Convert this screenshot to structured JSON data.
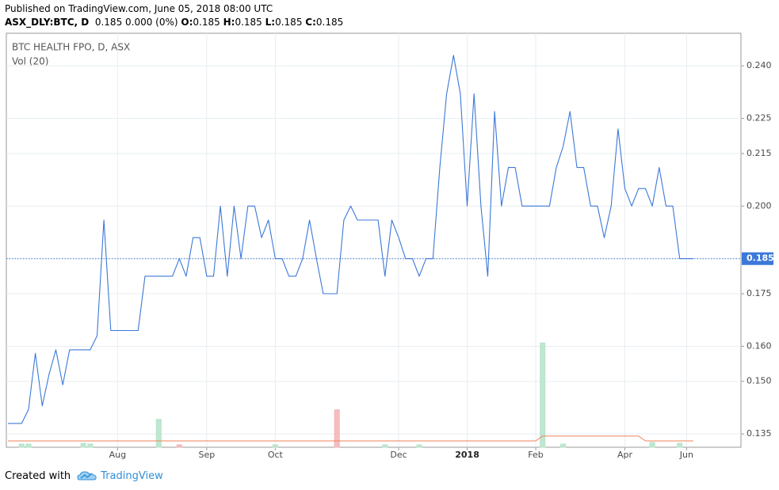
{
  "header": {
    "published": "Published on TradingView.com, June 05, 2018 08:00 UTC",
    "symbol": "ASX_DLY:BTC, D",
    "change": "0.185 0.000 (0%)",
    "ohlc": [
      {
        "key": "O:",
        "value": "0.185"
      },
      {
        "key": "H:",
        "value": "0.185"
      },
      {
        "key": "L:",
        "value": "0.185"
      },
      {
        "key": "C:",
        "value": "0.185"
      }
    ]
  },
  "chart_data": {
    "type": "line",
    "categories": [
      null,
      null,
      null,
      null,
      null,
      null,
      null,
      null,
      null,
      null,
      null,
      null,
      null,
      null,
      null,
      null,
      "Aug",
      null,
      null,
      null,
      null,
      null,
      null,
      null,
      null,
      null,
      null,
      null,
      null,
      "Sep",
      null,
      null,
      null,
      null,
      null,
      null,
      null,
      null,
      null,
      "Oct",
      null,
      null,
      null,
      null,
      null,
      null,
      null,
      null,
      null,
      null,
      null,
      null,
      null,
      null,
      null,
      null,
      null,
      "Dec",
      null,
      null,
      null,
      null,
      null,
      null,
      null,
      null,
      null,
      "2018",
      null,
      null,
      null,
      null,
      null,
      null,
      null,
      null,
      null,
      "Feb",
      null,
      null,
      null,
      null,
      null,
      null,
      null,
      null,
      null,
      null,
      null,
      null,
      "Apr",
      null,
      null,
      null,
      null,
      null,
      null,
      null,
      null,
      "Jun",
      null
    ],
    "series": [
      {
        "name": "BTC HEALTH FPO, D, ASX",
        "color": "#3c78d8",
        "values": [
          0.138,
          0.138,
          0.138,
          0.142,
          0.158,
          0.143,
          0.152,
          0.159,
          0.149,
          0.159,
          0.159,
          0.159,
          0.159,
          0.163,
          0.196,
          0.1645,
          0.1645,
          0.1645,
          0.1645,
          0.1645,
          0.18,
          0.18,
          0.18,
          0.18,
          0.18,
          0.185,
          0.18,
          0.191,
          0.191,
          0.18,
          0.18,
          0.2,
          0.18,
          0.2,
          0.185,
          0.2,
          0.2,
          0.191,
          0.196,
          0.185,
          0.185,
          0.18,
          0.18,
          0.185,
          0.196,
          0.185,
          0.175,
          0.175,
          0.175,
          0.196,
          0.2,
          0.196,
          0.196,
          0.196,
          0.196,
          0.18,
          0.196,
          0.191,
          0.185,
          0.185,
          0.18,
          0.185,
          0.185,
          0.211,
          0.232,
          0.243,
          0.232,
          0.2,
          0.232,
          0.2,
          0.18,
          0.227,
          0.2,
          0.211,
          0.211,
          0.2,
          0.2,
          0.2,
          0.2,
          0.2,
          0.211,
          0.217,
          0.227,
          0.211,
          0.211,
          0.2,
          0.2,
          0.191,
          0.2,
          0.222,
          0.205,
          0.2,
          0.205,
          0.205,
          0.2,
          0.211,
          0.2,
          0.2,
          0.185,
          0.185,
          0.185
        ]
      }
    ],
    "volume": {
      "name": "Vol (20)",
      "vlim": [
        0,
        520
      ],
      "ma_color": "#f0805a",
      "values": [
        null,
        null,
        4,
        4,
        null,
        null,
        null,
        null,
        null,
        null,
        null,
        5,
        4,
        null,
        null,
        null,
        null,
        null,
        null,
        null,
        null,
        null,
        35,
        null,
        null,
        3,
        null,
        null,
        null,
        null,
        null,
        null,
        null,
        null,
        null,
        null,
        null,
        null,
        null,
        3,
        null,
        null,
        null,
        null,
        null,
        null,
        null,
        null,
        47,
        null,
        null,
        null,
        null,
        null,
        null,
        3,
        null,
        null,
        null,
        null,
        3,
        null,
        null,
        null,
        null,
        null,
        null,
        null,
        null,
        null,
        null,
        null,
        null,
        null,
        null,
        null,
        null,
        null,
        131,
        null,
        null,
        4,
        null,
        null,
        null,
        null,
        null,
        null,
        null,
        null,
        null,
        null,
        null,
        null,
        6,
        null,
        null,
        null,
        5,
        null,
        null
      ],
      "colors": [
        null,
        null,
        "#b5e3c9",
        "#b5e3c9",
        null,
        null,
        null,
        null,
        null,
        null,
        null,
        "#b5e3c9",
        "#b5e3c9",
        null,
        null,
        null,
        null,
        null,
        null,
        null,
        null,
        null,
        "#b5e3c9",
        null,
        null,
        "#f5b2b4",
        null,
        null,
        null,
        null,
        null,
        null,
        null,
        null,
        null,
        null,
        null,
        null,
        null,
        "#b5e3c9",
        null,
        null,
        null,
        null,
        null,
        null,
        null,
        null,
        "#f5b2b4",
        null,
        null,
        null,
        null,
        null,
        null,
        "#b5e3c9",
        null,
        null,
        null,
        null,
        "#b5e3c9",
        null,
        null,
        null,
        null,
        null,
        null,
        null,
        null,
        null,
        null,
        null,
        null,
        null,
        null,
        null,
        null,
        null,
        "#b5e3c9",
        null,
        null,
        "#b5e3c9",
        null,
        null,
        null,
        null,
        null,
        null,
        null,
        null,
        null,
        null,
        null,
        null,
        "#b5e3c9",
        null,
        null,
        null,
        "#b5e3c9",
        null,
        null
      ],
      "ma": [
        8,
        8,
        8,
        8,
        8,
        8,
        8,
        8,
        8,
        8,
        8,
        8,
        8,
        8,
        8,
        8,
        8,
        8,
        8,
        8,
        8,
        8,
        8,
        8,
        8,
        8,
        8,
        8,
        8,
        8,
        8,
        8,
        8,
        8,
        8,
        8,
        8,
        8,
        8,
        8,
        8,
        8,
        8,
        8,
        8,
        8,
        8,
        8,
        8,
        8,
        8,
        8,
        8,
        8,
        8,
        8,
        8,
        8,
        8,
        8,
        8,
        8,
        8,
        8,
        8,
        8,
        8,
        8,
        8,
        8,
        8,
        8,
        8,
        8,
        8,
        8,
        8,
        8,
        14,
        14,
        14,
        14,
        14,
        14,
        14,
        14,
        14,
        14,
        14,
        14,
        14,
        14,
        14,
        8,
        8,
        8,
        8,
        8,
        8,
        8,
        8
      ]
    },
    "ylim": [
      0.1312,
      0.2493
    ],
    "yticks": [
      0.135,
      {
        "value": 0.15,
        "label": "0.150"
      },
      {
        "value": 0.16,
        "label": "0.160"
      },
      0.175,
      0.185,
      {
        "value": 0.2,
        "label": "0.200"
      },
      0.215,
      0.225,
      {
        "value": 0.24,
        "label": "0.240"
      }
    ],
    "grid": true,
    "last_price": {
      "value": 0.185,
      "label": "0.185"
    }
  },
  "footer": {
    "created": "Created with",
    "brand": "TradingView"
  }
}
